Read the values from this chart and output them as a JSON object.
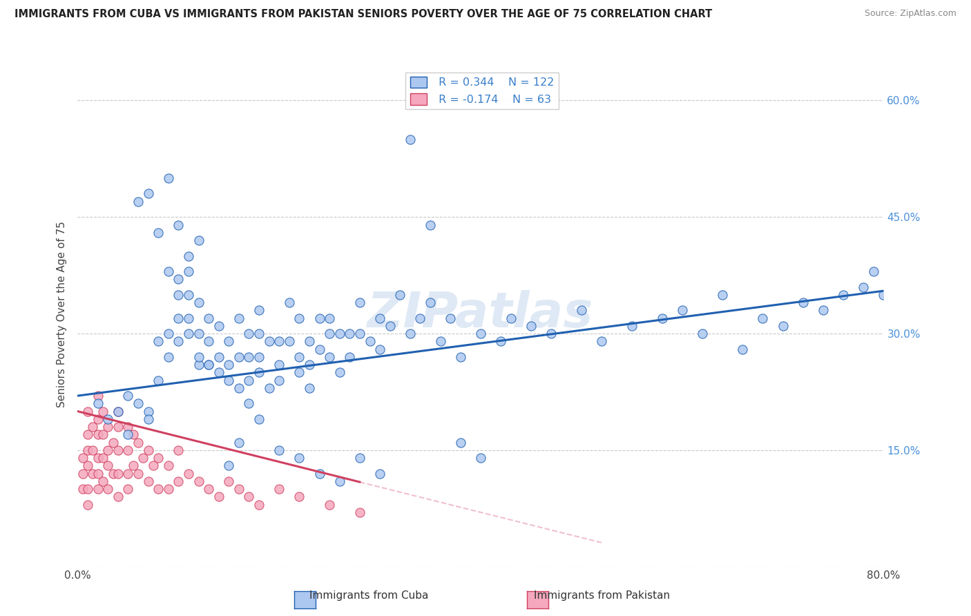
{
  "title": "IMMIGRANTS FROM CUBA VS IMMIGRANTS FROM PAKISTAN SENIORS POVERTY OVER THE AGE OF 75 CORRELATION CHART",
  "source": "Source: ZipAtlas.com",
  "ylabel": "Seniors Poverty Over the Age of 75",
  "xlim": [
    0.0,
    0.8
  ],
  "ylim": [
    0.0,
    0.65
  ],
  "y_ticks": [
    0.0,
    0.15,
    0.3,
    0.45,
    0.6
  ],
  "y_tick_labels_right": [
    "",
    "15.0%",
    "30.0%",
    "45.0%",
    "60.0%"
  ],
  "cuba_R": "0.344",
  "cuba_N": "122",
  "pakistan_R": "-0.174",
  "pakistan_N": "63",
  "cuba_color": "#adc8f0",
  "cuba_line_color": "#2060b0",
  "pakistan_color": "#f5a8be",
  "pakistan_line_color": "#d04060",
  "pakistan_dash_color": "#f0c0cc",
  "watermark": "ZIPatlas",
  "legend_label_cuba": "Immigrants from Cuba",
  "legend_label_pakistan": "Immigrants from Pakistan",
  "cuba_points_x": [
    0.02,
    0.03,
    0.04,
    0.05,
    0.05,
    0.06,
    0.07,
    0.07,
    0.08,
    0.08,
    0.09,
    0.09,
    0.09,
    0.1,
    0.1,
    0.1,
    0.1,
    0.11,
    0.11,
    0.11,
    0.11,
    0.12,
    0.12,
    0.12,
    0.12,
    0.13,
    0.13,
    0.13,
    0.14,
    0.14,
    0.14,
    0.15,
    0.15,
    0.15,
    0.16,
    0.16,
    0.16,
    0.17,
    0.17,
    0.17,
    0.18,
    0.18,
    0.18,
    0.18,
    0.19,
    0.19,
    0.2,
    0.2,
    0.2,
    0.21,
    0.21,
    0.22,
    0.22,
    0.22,
    0.23,
    0.23,
    0.23,
    0.24,
    0.24,
    0.25,
    0.25,
    0.25,
    0.26,
    0.26,
    0.27,
    0.27,
    0.28,
    0.28,
    0.29,
    0.3,
    0.3,
    0.31,
    0.32,
    0.33,
    0.34,
    0.35,
    0.36,
    0.37,
    0.38,
    0.4,
    0.42,
    0.43,
    0.45,
    0.47,
    0.5,
    0.52,
    0.55,
    0.58,
    0.6,
    0.62,
    0.64,
    0.66,
    0.68,
    0.7,
    0.72,
    0.74,
    0.76,
    0.78,
    0.79,
    0.8,
    0.06,
    0.07,
    0.08,
    0.09,
    0.1,
    0.11,
    0.12,
    0.13,
    0.15,
    0.16,
    0.17,
    0.18,
    0.2,
    0.22,
    0.24,
    0.26,
    0.28,
    0.3,
    0.33,
    0.35,
    0.38,
    0.4
  ],
  "cuba_points_y": [
    0.21,
    0.19,
    0.2,
    0.22,
    0.17,
    0.21,
    0.2,
    0.19,
    0.24,
    0.29,
    0.27,
    0.3,
    0.38,
    0.29,
    0.32,
    0.35,
    0.37,
    0.3,
    0.32,
    0.35,
    0.38,
    0.26,
    0.3,
    0.34,
    0.27,
    0.26,
    0.29,
    0.32,
    0.25,
    0.27,
    0.31,
    0.24,
    0.26,
    0.29,
    0.23,
    0.27,
    0.32,
    0.24,
    0.27,
    0.3,
    0.25,
    0.27,
    0.3,
    0.33,
    0.23,
    0.29,
    0.24,
    0.26,
    0.29,
    0.29,
    0.34,
    0.25,
    0.27,
    0.32,
    0.26,
    0.23,
    0.29,
    0.28,
    0.32,
    0.27,
    0.3,
    0.32,
    0.25,
    0.3,
    0.27,
    0.3,
    0.3,
    0.34,
    0.29,
    0.28,
    0.32,
    0.31,
    0.35,
    0.3,
    0.32,
    0.34,
    0.29,
    0.32,
    0.27,
    0.3,
    0.29,
    0.32,
    0.31,
    0.3,
    0.33,
    0.29,
    0.31,
    0.32,
    0.33,
    0.3,
    0.35,
    0.28,
    0.32,
    0.31,
    0.34,
    0.33,
    0.35,
    0.36,
    0.38,
    0.35,
    0.47,
    0.48,
    0.43,
    0.5,
    0.44,
    0.4,
    0.42,
    0.26,
    0.13,
    0.16,
    0.21,
    0.19,
    0.15,
    0.14,
    0.12,
    0.11,
    0.14,
    0.12,
    0.55,
    0.44,
    0.16,
    0.14
  ],
  "pakistan_points_x": [
    0.005,
    0.005,
    0.005,
    0.01,
    0.01,
    0.01,
    0.01,
    0.01,
    0.01,
    0.015,
    0.015,
    0.015,
    0.02,
    0.02,
    0.02,
    0.02,
    0.02,
    0.02,
    0.025,
    0.025,
    0.025,
    0.025,
    0.03,
    0.03,
    0.03,
    0.03,
    0.035,
    0.035,
    0.04,
    0.04,
    0.04,
    0.04,
    0.04,
    0.05,
    0.05,
    0.05,
    0.05,
    0.055,
    0.055,
    0.06,
    0.06,
    0.065,
    0.07,
    0.07,
    0.075,
    0.08,
    0.08,
    0.09,
    0.09,
    0.1,
    0.1,
    0.11,
    0.12,
    0.13,
    0.14,
    0.15,
    0.16,
    0.17,
    0.18,
    0.2,
    0.22,
    0.25,
    0.28
  ],
  "pakistan_points_y": [
    0.14,
    0.12,
    0.1,
    0.2,
    0.17,
    0.15,
    0.13,
    0.1,
    0.08,
    0.18,
    0.15,
    0.12,
    0.22,
    0.19,
    0.17,
    0.14,
    0.12,
    0.1,
    0.2,
    0.17,
    0.14,
    0.11,
    0.18,
    0.15,
    0.13,
    0.1,
    0.16,
    0.12,
    0.2,
    0.18,
    0.15,
    0.12,
    0.09,
    0.18,
    0.15,
    0.12,
    0.1,
    0.17,
    0.13,
    0.16,
    0.12,
    0.14,
    0.15,
    0.11,
    0.13,
    0.14,
    0.1,
    0.13,
    0.1,
    0.15,
    0.11,
    0.12,
    0.11,
    0.1,
    0.09,
    0.11,
    0.1,
    0.09,
    0.08,
    0.1,
    0.09,
    0.08,
    0.07
  ],
  "background_color": "#ffffff",
  "grid_color": "#c8c8c8"
}
